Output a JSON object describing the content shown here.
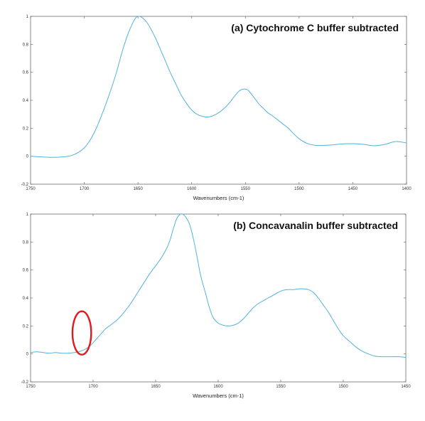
{
  "colors": {
    "line": "#52b2dd",
    "annotation": "#e0191c"
  },
  "chart_data": [
    {
      "type": "line",
      "title": "(a) Cytochrome C buffer subtracted",
      "xlabel": "Wavenumbers (cm-1)",
      "ylabel": "",
      "xlim": [
        1750,
        1400
      ],
      "ylim": [
        -0.2,
        1
      ],
      "x_reversed": true,
      "grid": false,
      "xticks": [
        1750,
        1700,
        1650,
        1600,
        1550,
        1500,
        1450,
        1400
      ],
      "yticks": [
        -0.2,
        0,
        0.2,
        0.4,
        0.6,
        0.8,
        1
      ],
      "xtick_labels": [
        "1750",
        "1700",
        "1650",
        "1600",
        "1550",
        "1500",
        "1450",
        "1400"
      ],
      "ytick_labels": [
        "-0.2",
        "0",
        "0.2",
        "0.4",
        "0.6",
        "0.8",
        "1"
      ],
      "series": [
        {
          "x": [
            1750,
            1740,
            1730,
            1720,
            1712,
            1705,
            1700,
            1695,
            1690,
            1685,
            1680,
            1675,
            1670,
            1665,
            1660,
            1655,
            1652,
            1649,
            1646,
            1642,
            1638,
            1634,
            1630,
            1625,
            1620,
            1615,
            1610,
            1605,
            1600,
            1595,
            1590,
            1585,
            1580,
            1575,
            1570,
            1565,
            1560,
            1556,
            1552,
            1548,
            1545,
            1541,
            1537,
            1533,
            1529,
            1525,
            1520,
            1515,
            1510,
            1505,
            1500,
            1495,
            1490,
            1485,
            1480,
            1470,
            1460,
            1450,
            1440,
            1430,
            1420,
            1410,
            1400
          ],
          "y": [
            0.0,
            -0.005,
            -0.008,
            -0.005,
            0.005,
            0.03,
            0.06,
            0.11,
            0.18,
            0.27,
            0.37,
            0.48,
            0.6,
            0.74,
            0.86,
            0.95,
            0.99,
            1.0,
            0.99,
            0.96,
            0.91,
            0.85,
            0.78,
            0.69,
            0.6,
            0.52,
            0.44,
            0.38,
            0.33,
            0.3,
            0.285,
            0.28,
            0.29,
            0.31,
            0.34,
            0.38,
            0.43,
            0.465,
            0.48,
            0.475,
            0.45,
            0.41,
            0.37,
            0.34,
            0.31,
            0.29,
            0.26,
            0.23,
            0.2,
            0.16,
            0.125,
            0.1,
            0.085,
            0.078,
            0.077,
            0.08,
            0.088,
            0.09,
            0.085,
            0.075,
            0.085,
            0.105,
            0.095
          ]
        }
      ]
    },
    {
      "type": "line",
      "title": "(b) Concavanalin buffer subtracted",
      "xlabel": "Wavenumbers (cm-1)",
      "ylabel": "",
      "xlim": [
        1750,
        1450
      ],
      "ylim": [
        -0.2,
        1
      ],
      "x_reversed": true,
      "grid": false,
      "xticks": [
        1750,
        1700,
        1650,
        1600,
        1550,
        1500,
        1450
      ],
      "yticks": [
        -0.2,
        0,
        0.2,
        0.4,
        0.6,
        0.8,
        1
      ],
      "xtick_labels": [
        "1750",
        "1700",
        "1650",
        "1600",
        "1550",
        "1500",
        "1450"
      ],
      "ytick_labels": [
        "-0.2",
        "0",
        "0.2",
        "0.4",
        "0.6",
        "0.8",
        "1"
      ],
      "series": [
        {
          "x": [
            1750,
            1745,
            1740,
            1735,
            1730,
            1725,
            1720,
            1715,
            1710,
            1705,
            1701,
            1697,
            1693,
            1690,
            1687,
            1684,
            1680,
            1675,
            1670,
            1665,
            1660,
            1655,
            1650,
            1646,
            1642,
            1639,
            1637,
            1635,
            1633,
            1630,
            1627,
            1623,
            1620,
            1617,
            1614,
            1610,
            1607,
            1604,
            1600,
            1596,
            1592,
            1588,
            1584,
            1580,
            1576,
            1572,
            1568,
            1564,
            1560,
            1556,
            1552,
            1548,
            1544,
            1540,
            1536,
            1532,
            1528,
            1524,
            1520,
            1516,
            1512,
            1508,
            1504,
            1500,
            1495,
            1490,
            1485,
            1480,
            1475,
            1470,
            1465,
            1460,
            1455,
            1450
          ],
          "y": [
            0.01,
            0.015,
            0.01,
            0.005,
            0.01,
            0.005,
            0.005,
            0.01,
            0.02,
            0.04,
            0.07,
            0.11,
            0.15,
            0.18,
            0.2,
            0.22,
            0.25,
            0.3,
            0.36,
            0.43,
            0.5,
            0.57,
            0.63,
            0.68,
            0.74,
            0.8,
            0.86,
            0.92,
            0.97,
            1.0,
            0.99,
            0.93,
            0.83,
            0.7,
            0.56,
            0.43,
            0.33,
            0.26,
            0.22,
            0.205,
            0.2,
            0.205,
            0.22,
            0.25,
            0.29,
            0.33,
            0.36,
            0.38,
            0.4,
            0.42,
            0.44,
            0.455,
            0.46,
            0.46,
            0.465,
            0.465,
            0.46,
            0.44,
            0.4,
            0.35,
            0.3,
            0.24,
            0.18,
            0.13,
            0.09,
            0.05,
            0.02,
            0.0,
            -0.015,
            -0.02,
            -0.02,
            -0.02,
            -0.02,
            -0.025
          ]
        }
      ],
      "annotation": {
        "shape": "ellipse",
        "cx": 1709,
        "cy": 0.15,
        "rx": 7.5,
        "ry": 0.155
      }
    }
  ]
}
